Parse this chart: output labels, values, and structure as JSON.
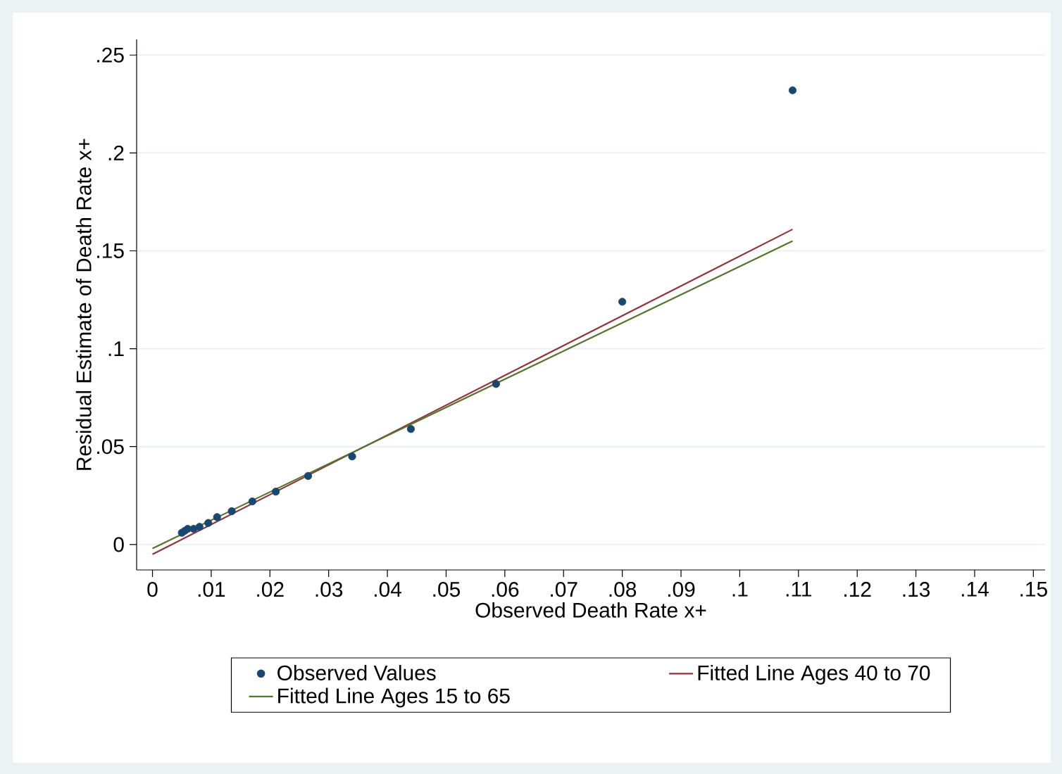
{
  "chart_data": {
    "type": "scatter",
    "xlabel": "Observed Death Rate x+",
    "ylabel": "Residual Estimate of Death Rate x+",
    "series": [
      {
        "name": "Observed Values",
        "type": "scatter",
        "color": "#1a476f",
        "x": [
          0.005,
          0.0055,
          0.006,
          0.007,
          0.008,
          0.0095,
          0.011,
          0.0135,
          0.017,
          0.021,
          0.0265,
          0.034,
          0.044,
          0.0585,
          0.08,
          0.109
        ],
        "values": [
          0.006,
          0.007,
          0.008,
          0.008,
          0.009,
          0.011,
          0.014,
          0.017,
          0.022,
          0.027,
          0.035,
          0.045,
          0.059,
          0.082,
          0.124,
          0.232
        ]
      },
      {
        "name": "Fitted Line Ages 40 to 70",
        "type": "line",
        "marker": "none",
        "color": "#90353b",
        "x": [
          0,
          0.109
        ],
        "values": [
          -0.005,
          0.161
        ]
      },
      {
        "name": "Fitted Line Ages 15 to 65",
        "type": "line",
        "marker": "none",
        "color": "#55752f",
        "x": [
          0,
          0.109
        ],
        "values": [
          -0.002,
          0.155
        ]
      }
    ],
    "xlim": [
      -0.0027,
      0.152
    ],
    "ylim": [
      -0.013,
      0.258
    ],
    "xticks": [
      0,
      {
        "value": 0.01,
        "label": ".01"
      },
      {
        "value": 0.02,
        "label": ".02"
      },
      {
        "value": 0.03,
        "label": ".03"
      },
      {
        "value": 0.04,
        "label": ".04"
      },
      {
        "value": 0.05,
        "label": ".05"
      },
      {
        "value": 0.06,
        "label": ".06"
      },
      {
        "value": 0.07,
        "label": ".07"
      },
      {
        "value": 0.08,
        "label": ".08"
      },
      {
        "value": 0.09,
        "label": ".09"
      },
      {
        "value": 0.1,
        "label": ".1"
      },
      {
        "value": 0.11,
        "label": ".11"
      },
      {
        "value": 0.12,
        "label": ".12"
      },
      {
        "value": 0.13,
        "label": ".13"
      },
      {
        "value": 0.14,
        "label": ".14"
      },
      {
        "value": 0.15,
        "label": ".15"
      }
    ],
    "yticks": [
      0,
      {
        "value": 0.05,
        "label": ".05"
      },
      {
        "value": 0.1,
        "label": ".1"
      },
      {
        "value": 0.15,
        "label": ".15"
      },
      {
        "value": 0.2,
        "label": ".2"
      },
      {
        "value": 0.25,
        "label": ".25"
      }
    ],
    "grid": "y",
    "legend": "bottom",
    "marker": "circle"
  }
}
